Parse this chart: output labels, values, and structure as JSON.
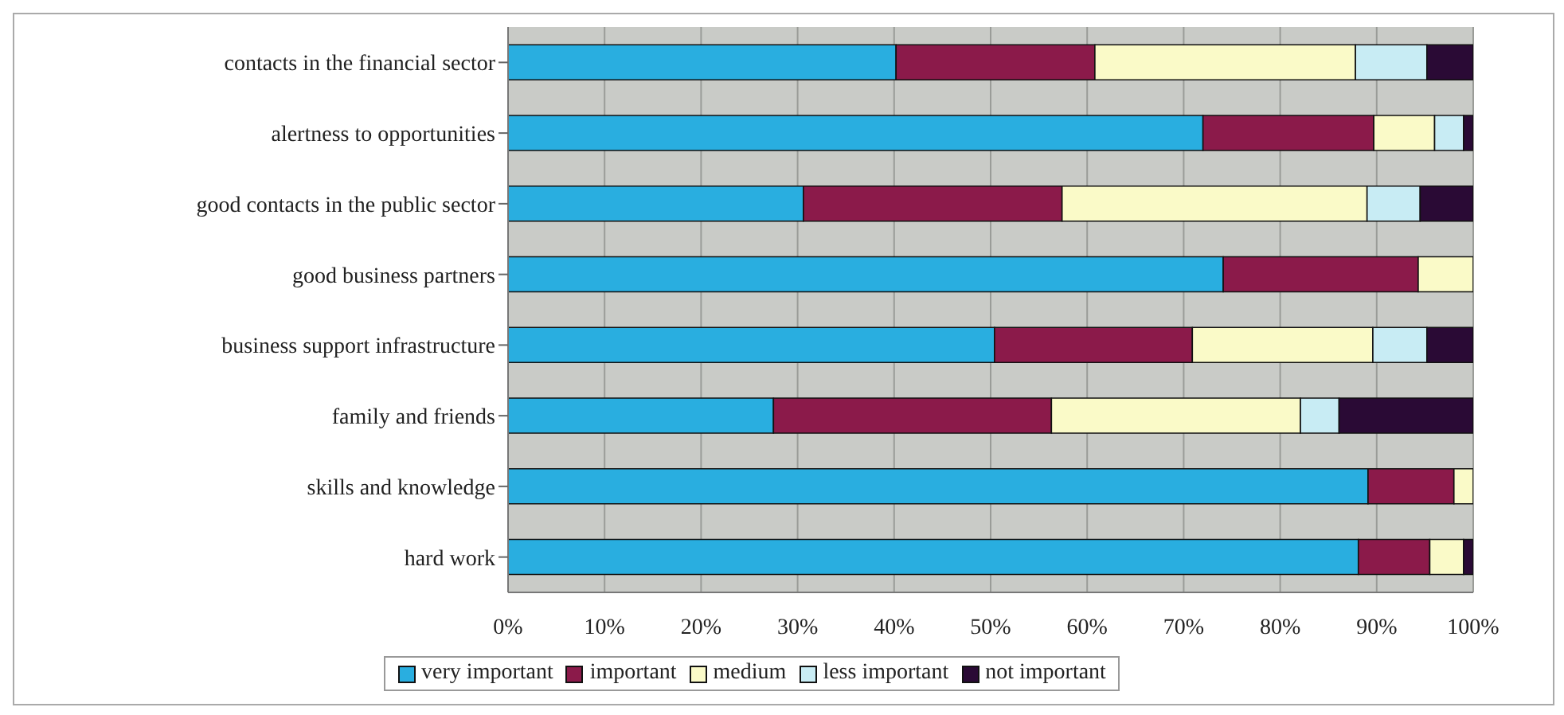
{
  "chart_data": {
    "type": "bar",
    "orientation": "horizontal",
    "stacked": true,
    "categories": [
      "contacts in the financial sector",
      "alertness to opportunities",
      "good contacts in the public sector",
      "good business partners",
      "business support infrastructure",
      "family and friends",
      "skills and knowledge",
      "hard work"
    ],
    "series": [
      {
        "name": "very important",
        "color": "#29aee0",
        "values": [
          40.2,
          72,
          30.6,
          74.1,
          50.4,
          27.5,
          89.1,
          88.1
        ]
      },
      {
        "name": "important",
        "color": "#8b1a4a",
        "values": [
          20.6,
          17.7,
          26.8,
          20.2,
          20.5,
          28.8,
          8.9,
          7.4
        ]
      },
      {
        "name": "medium",
        "color": "#fafac8",
        "values": [
          27,
          6.3,
          31.6,
          5.7,
          18.7,
          25.8,
          2,
          3.5
        ]
      },
      {
        "name": "less important",
        "color": "#c8ecf4",
        "values": [
          7.4,
          3,
          5.5,
          0,
          5.6,
          4,
          0,
          0
        ]
      },
      {
        "name": "not important",
        "color": "#2a0a35",
        "values": [
          4.8,
          1,
          5.5,
          0,
          4.8,
          13.9,
          0,
          1
        ]
      }
    ],
    "xlim": [
      0,
      100
    ],
    "xticks": [
      {
        "value": 0,
        "label": "0%"
      },
      {
        "value": 10,
        "label": "10%"
      },
      {
        "value": 20,
        "label": "20%"
      },
      {
        "value": 30,
        "label": "30%"
      },
      {
        "value": 40,
        "label": "40%"
      },
      {
        "value": 50,
        "label": "50%"
      },
      {
        "value": 60,
        "label": "60%"
      },
      {
        "value": 70,
        "label": "70%"
      },
      {
        "value": 80,
        "label": "80%"
      },
      {
        "value": 90,
        "label": "90%"
      },
      {
        "value": 100,
        "label": "100%"
      }
    ],
    "grid": "x",
    "legend": "bottom"
  }
}
